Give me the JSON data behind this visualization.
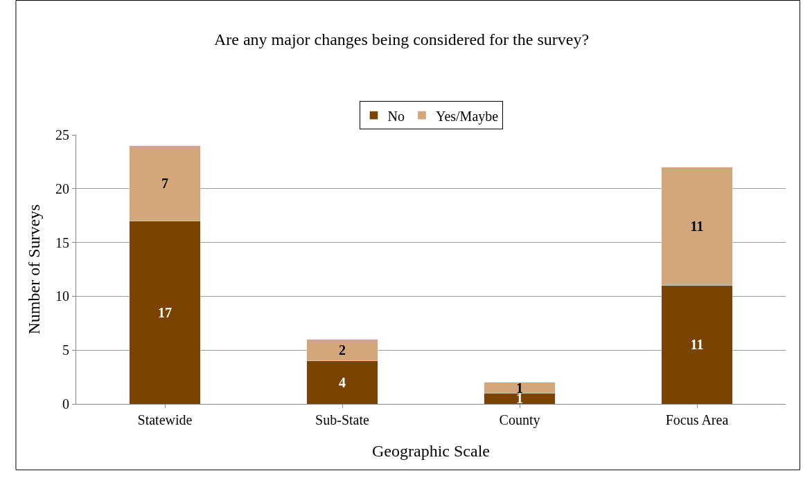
{
  "chart_data": {
    "type": "bar",
    "title": "Are any major changes being considered for the survey?",
    "xlabel": "Geographic Scale",
    "ylabel": "Number of Surveys",
    "categories": [
      "Statewide",
      "Sub-State",
      "County",
      "Focus Area"
    ],
    "series": [
      {
        "name": "No",
        "color": "#7a4300",
        "values": [
          17,
          4,
          1,
          11
        ]
      },
      {
        "name": "Yes/Maybe",
        "color": "#d4a77a",
        "values": [
          7,
          2,
          1,
          11
        ]
      }
    ],
    "stacked": true,
    "data_labels": true,
    "ylim": [
      0,
      25
    ],
    "yticks": [
      0,
      5,
      10,
      15,
      20,
      25
    ],
    "grid": "y",
    "legend": "top"
  }
}
